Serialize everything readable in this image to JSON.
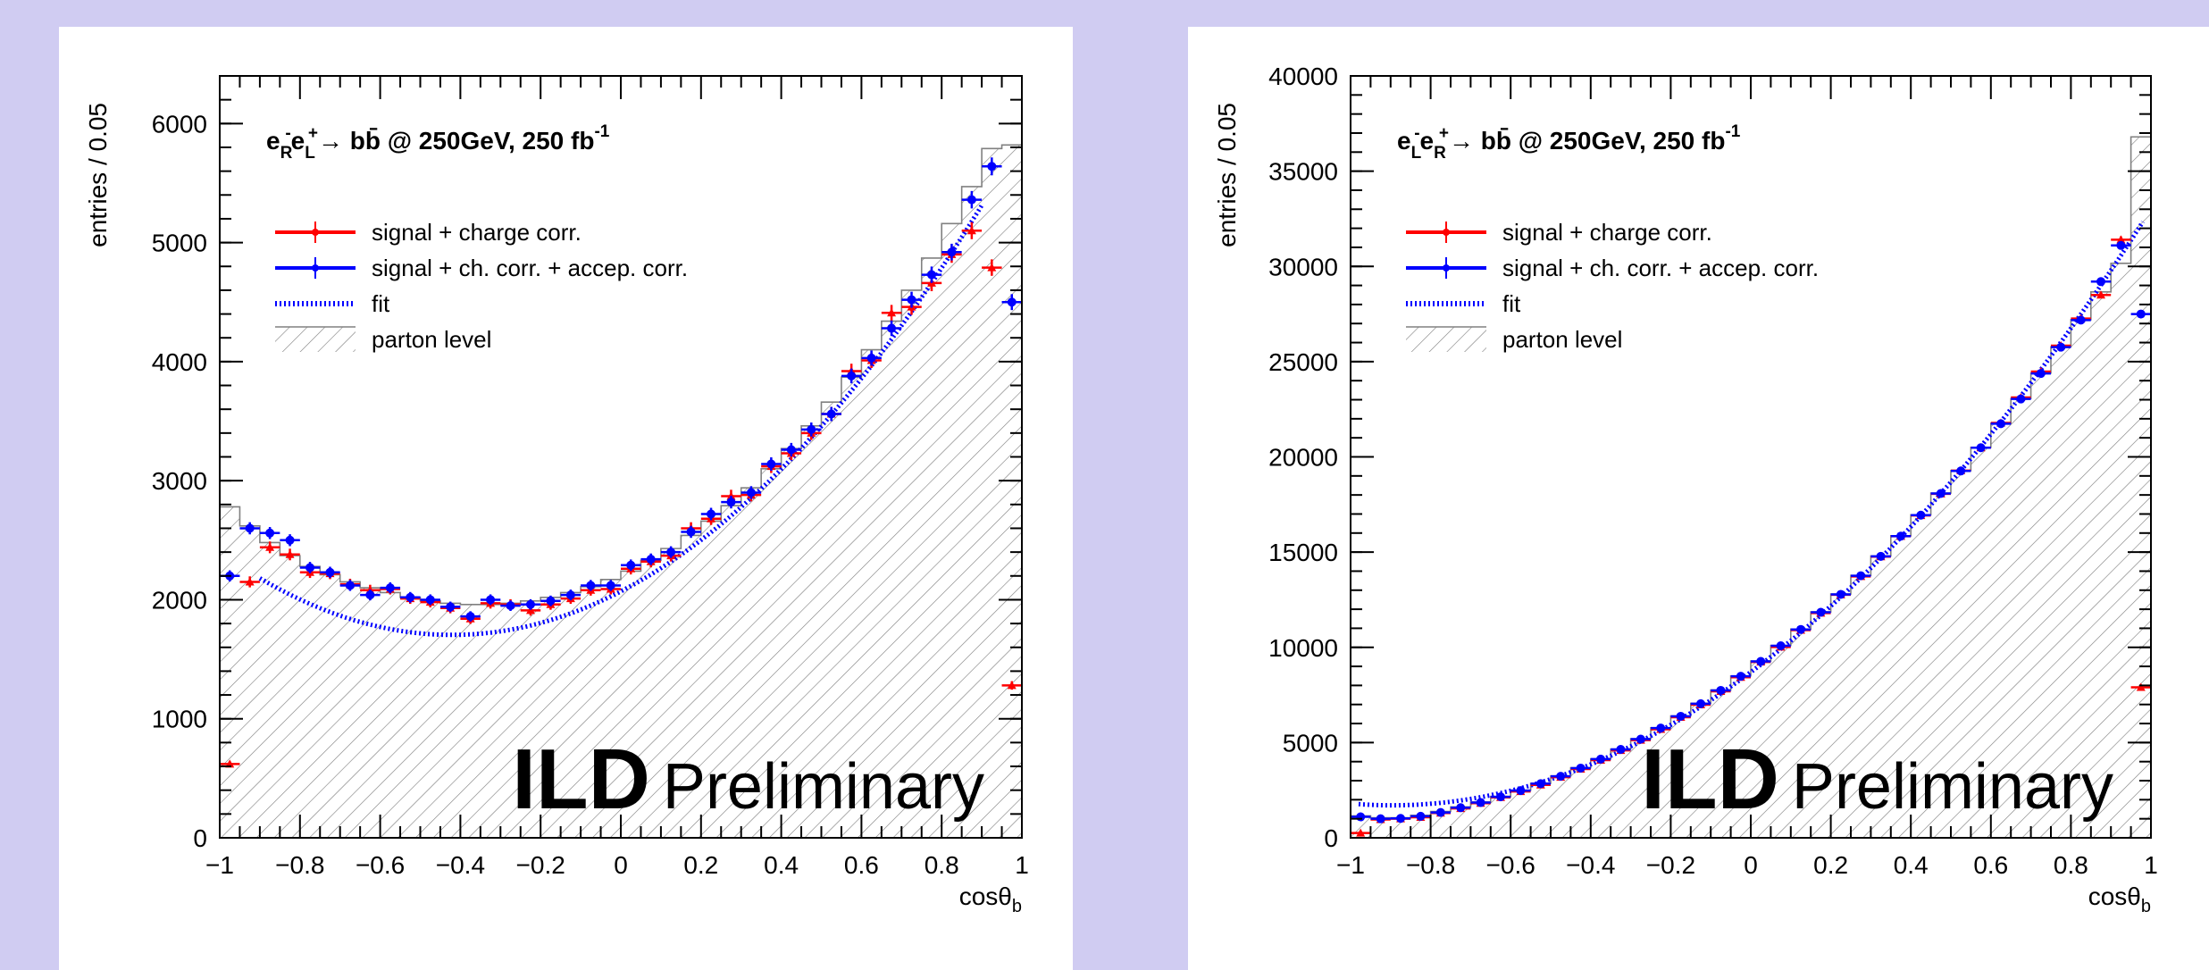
{
  "colors": {
    "background": "#d0ccf2",
    "signal": "#ff0000",
    "signal_acc": "#0000ff",
    "fit": "#0000ff",
    "parton": "#808080"
  },
  "chart_data": [
    {
      "type": "histogram",
      "process_label": {
        "lead": "e",
        "sub1": "R",
        "sup1": "-",
        "mid": "e",
        "sub2": "L",
        "sup2": "+",
        "tail": "→ bb̄ @ 250GeV, 250 fb",
        "sup3": "-1"
      },
      "ylabel": "entries / 0.05",
      "xlabel": "cosθ",
      "xlabel_sub": "b",
      "xlim": [
        -1,
        1
      ],
      "ylim": [
        0,
        6400
      ],
      "xticks": [
        "−1",
        "−0.8",
        "−0.6",
        "−0.4",
        "−0.2",
        "0",
        "0.2",
        "0.4",
        "0.6",
        "0.8",
        "1"
      ],
      "yticks": [
        "0",
        "1000",
        "2000",
        "3000",
        "4000",
        "5000",
        "6000"
      ],
      "legend": [
        {
          "label": "signal  + charge corr.",
          "style": "red-errorbar"
        },
        {
          "label": "signal + ch. corr. + accep. corr.",
          "style": "blue-errorbar"
        },
        {
          "label": "fit",
          "style": "blue-dotted"
        },
        {
          "label": "parton level",
          "style": "hatch"
        }
      ],
      "branding": {
        "big": "ILD",
        "small": "Preliminary"
      },
      "bin_centers": [
        -0.975,
        -0.925,
        -0.875,
        -0.825,
        -0.775,
        -0.725,
        -0.675,
        -0.625,
        -0.575,
        -0.525,
        -0.475,
        -0.425,
        -0.375,
        -0.325,
        -0.275,
        -0.225,
        -0.175,
        -0.125,
        -0.075,
        -0.025,
        0.025,
        0.075,
        0.125,
        0.175,
        0.225,
        0.275,
        0.325,
        0.375,
        0.425,
        0.475,
        0.525,
        0.575,
        0.625,
        0.675,
        0.725,
        0.775,
        0.825,
        0.875,
        0.925,
        0.975
      ],
      "series": [
        {
          "name": "parton level",
          "values": [
            2780,
            2620,
            2480,
            2370,
            2280,
            2210,
            2150,
            2100,
            2060,
            2020,
            1990,
            1970,
            1960,
            1960,
            1970,
            1990,
            2020,
            2060,
            2110,
            2170,
            2240,
            2330,
            2430,
            2540,
            2660,
            2790,
            2940,
            3100,
            3270,
            3460,
            3660,
            3870,
            4100,
            4340,
            4600,
            4870,
            5160,
            5470,
            5790,
            5820
          ]
        },
        {
          "name": "signal  + charge corr.",
          "values": [
            620,
            2150,
            2440,
            2380,
            2230,
            2220,
            2130,
            2080,
            2090,
            2010,
            1980,
            1930,
            1840,
            1970,
            1960,
            1910,
            1960,
            2010,
            2080,
            2090,
            2260,
            2320,
            2370,
            2600,
            2680,
            2870,
            2880,
            3120,
            3230,
            3400,
            3560,
            3920,
            4010,
            4410,
            4460,
            4660,
            4900,
            5100,
            4790,
            1280
          ]
        },
        {
          "name": "signal + ch. corr. + accep. corr.",
          "values": [
            2200,
            2600,
            2560,
            2500,
            2270,
            2230,
            2120,
            2040,
            2100,
            2020,
            2000,
            1940,
            1860,
            2000,
            1950,
            1960,
            1990,
            2040,
            2120,
            2120,
            2290,
            2340,
            2400,
            2570,
            2720,
            2820,
            2900,
            3140,
            3260,
            3430,
            3560,
            3880,
            4030,
            4280,
            4520,
            4730,
            4920,
            5360,
            5640,
            4500
          ]
        }
      ],
      "fit": {
        "model": "A*(1+x^2)+B*x",
        "A": 2070,
        "B": 1740,
        "range": [
          -0.9,
          0.9
        ]
      }
    },
    {
      "type": "histogram",
      "process_label": {
        "lead": "e",
        "sub1": "L",
        "sup1": "-",
        "mid": "e",
        "sub2": "R",
        "sup2": "+",
        "tail": "→ bb̄ @ 250GeV, 250 fb",
        "sup3": "-1"
      },
      "ylabel": "entries / 0.05",
      "xlabel": "cosθ",
      "xlabel_sub": "b",
      "xlim": [
        -1,
        1
      ],
      "ylim": [
        0,
        40000
      ],
      "xticks": [
        "−1",
        "−0.8",
        "−0.6",
        "−0.4",
        "−0.2",
        "0",
        "0.2",
        "0.4",
        "0.6",
        "0.8",
        "1"
      ],
      "yticks": [
        "0",
        "5000",
        "10000",
        "15000",
        "20000",
        "25000",
        "30000",
        "35000",
        "40000"
      ],
      "legend": [
        {
          "label": "signal  + charge corr.",
          "style": "red-errorbar"
        },
        {
          "label": "signal + ch. corr. + accep. corr.",
          "style": "blue-errorbar"
        },
        {
          "label": "fit",
          "style": "blue-dotted"
        },
        {
          "label": "parton level",
          "style": "hatch"
        }
      ],
      "branding": {
        "big": "ILD",
        "small": "Preliminary"
      },
      "bin_centers": [
        -0.975,
        -0.925,
        -0.875,
        -0.825,
        -0.775,
        -0.725,
        -0.675,
        -0.625,
        -0.575,
        -0.525,
        -0.475,
        -0.425,
        -0.375,
        -0.325,
        -0.275,
        -0.225,
        -0.175,
        -0.125,
        -0.075,
        -0.025,
        0.025,
        0.075,
        0.125,
        0.175,
        0.225,
        0.275,
        0.325,
        0.375,
        0.425,
        0.475,
        0.525,
        0.575,
        0.625,
        0.675,
        0.725,
        0.775,
        0.825,
        0.875,
        0.925,
        0.975
      ],
      "series": [
        {
          "name": "parton level",
          "values": [
            1150,
            1050,
            1050,
            1180,
            1380,
            1620,
            1880,
            2170,
            2500,
            2860,
            3250,
            3680,
            4150,
            4660,
            5200,
            5780,
            6400,
            7060,
            7760,
            8500,
            9280,
            10100,
            10960,
            11860,
            12800,
            13780,
            14800,
            15860,
            16960,
            18100,
            19280,
            20500,
            21760,
            23060,
            24400,
            25780,
            27200,
            28660,
            30160,
            36800
          ]
        },
        {
          "name": "signal  + charge corr.",
          "values": [
            250,
            960,
            1000,
            1080,
            1300,
            1540,
            1820,
            2120,
            2430,
            2780,
            3180,
            3610,
            4080,
            4590,
            5130,
            5700,
            6330,
            6990,
            7690,
            8430,
            9230,
            10020,
            10900,
            11800,
            12760,
            13720,
            14760,
            15830,
            16920,
            18060,
            19280,
            20480,
            21780,
            23120,
            24480,
            25840,
            27260,
            28500,
            31400,
            7900
          ]
        },
        {
          "name": "signal + ch. corr. + accep. corr.",
          "values": [
            1100,
            1000,
            1020,
            1130,
            1330,
            1580,
            1850,
            2150,
            2480,
            2840,
            3230,
            3660,
            4130,
            4640,
            5180,
            5760,
            6380,
            7040,
            7740,
            8480,
            9260,
            10080,
            10940,
            11840,
            12780,
            13760,
            14780,
            15840,
            16940,
            18080,
            19260,
            20480,
            21740,
            23040,
            24380,
            25760,
            27180,
            29200,
            31100,
            27500
          ]
        }
      ],
      "fit": {
        "model": "A*(1+x^2)+B*x",
        "A": 8700,
        "B": 15600,
        "range": [
          -0.98,
          0.98
        ]
      }
    }
  ]
}
